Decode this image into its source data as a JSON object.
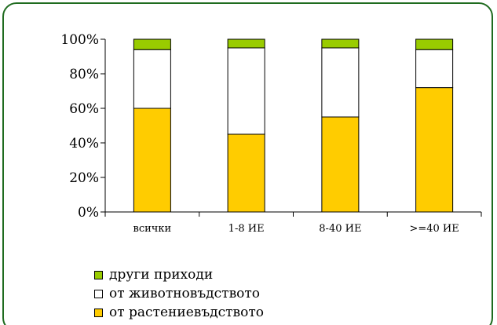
{
  "chart_data": {
    "type": "bar",
    "stacked": true,
    "percent_axis": true,
    "categories": [
      "всички",
      "1-8 ИЕ",
      "8-40 ИЕ",
      ">=40 ИЕ"
    ],
    "series": [
      {
        "name": "от растениевъдството",
        "values": [
          60,
          45,
          55,
          72
        ],
        "color": "#ffcc00"
      },
      {
        "name": "от животновъдството",
        "values": [
          34,
          50,
          40,
          22
        ],
        "color": "#ffffff"
      },
      {
        "name": "други приходи",
        "values": [
          6,
          5,
          5,
          6
        ],
        "color": "#99cc00"
      }
    ],
    "ylim": [
      0,
      100
    ],
    "yticks": [
      "0%",
      "20%",
      "40%",
      "60%",
      "80%",
      "100%"
    ],
    "grid": false,
    "legend_position": "bottom-left"
  },
  "legend": {
    "items": [
      {
        "label": "други приходи",
        "color": "#99cc00"
      },
      {
        "label": "от животновъдството",
        "color": "#ffffff"
      },
      {
        "label": "от растениевъдството",
        "color": "#ffcc00"
      }
    ]
  },
  "frame_color": "#1f6b1f"
}
